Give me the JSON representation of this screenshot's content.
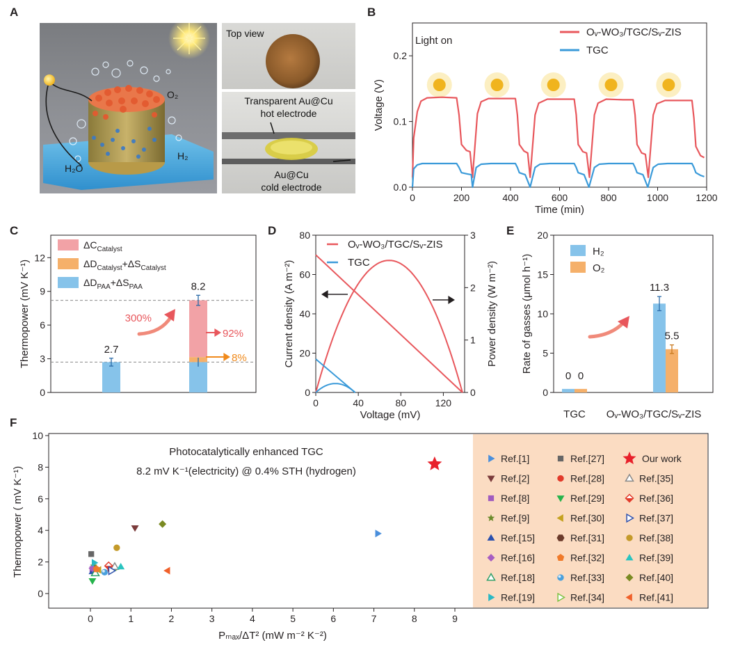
{
  "panel_labels": {
    "a": "A",
    "b": "B",
    "c": "C",
    "d": "D",
    "e": "E",
    "f": "F"
  },
  "photos": {
    "main_labels": {
      "o2": "O₂",
      "h2": "H₂",
      "h2o": "H₂O"
    },
    "top_view": "Top view",
    "side_top_line1": "Transparent Au@Cu",
    "side_top_line2": "hot electrode",
    "side_bottom_line1": "Au@Cu",
    "side_bottom_line2": "cold electrode"
  },
  "colors": {
    "red": "#e8575c",
    "blue": "#3a9ad9",
    "light_blue": "#86c3ea",
    "pink": "#f2a2a6",
    "orange": "#f5b06a",
    "orange_line": "#f08a1c",
    "legend_box": "#fbdcc2"
  },
  "chart_data": [
    {
      "id": "B",
      "type": "line",
      "title": "",
      "xlabel": "Time (min)",
      "ylabel": "Voltage (V)",
      "xlim": [
        0,
        1200
      ],
      "ylim": [
        0,
        0.25
      ],
      "xticks": [
        "0",
        "200",
        "400",
        "600",
        "800",
        "1000",
        "1200"
      ],
      "yticks": [
        "0.0",
        "0.1",
        "0.2"
      ],
      "annotation": "Light on",
      "legend_position": "top-right",
      "series": [
        {
          "name": "Oᵥ-WO₃/TGC/Sᵥ-ZIS",
          "color": "#e8575c",
          "x": [
            0,
            5,
            20,
            35,
            60,
            120,
            180,
            190,
            200,
            220,
            235,
            245,
            265,
            280,
            310,
            370,
            420,
            428,
            436,
            455,
            470,
            480,
            500,
            515,
            550,
            620,
            660,
            668,
            676,
            695,
            710,
            722,
            742,
            757,
            790,
            860,
            900,
            908,
            916,
            935,
            950,
            962,
            982,
            997,
            1030,
            1100,
            1140,
            1148,
            1156,
            1175,
            1190
          ],
          "y": [
            0.015,
            0.075,
            0.115,
            0.131,
            0.136,
            0.137,
            0.136,
            0.11,
            0.065,
            0.056,
            0.054,
            0.015,
            0.112,
            0.13,
            0.135,
            0.135,
            0.135,
            0.11,
            0.065,
            0.055,
            0.052,
            0.015,
            0.11,
            0.128,
            0.134,
            0.134,
            0.134,
            0.11,
            0.065,
            0.054,
            0.052,
            0.015,
            0.11,
            0.128,
            0.134,
            0.133,
            0.133,
            0.11,
            0.065,
            0.052,
            0.05,
            0.015,
            0.11,
            0.127,
            0.132,
            0.132,
            0.132,
            0.105,
            0.062,
            0.048,
            0.045
          ]
        },
        {
          "name": "TGC",
          "color": "#3a9ad9",
          "x": [
            0,
            5,
            20,
            40,
            80,
            180,
            190,
            200,
            225,
            240,
            245,
            260,
            280,
            320,
            420,
            428,
            436,
            460,
            480,
            500,
            520,
            560,
            660,
            668,
            676,
            700,
            720,
            742,
            762,
            800,
            900,
            908,
            916,
            940,
            960,
            982,
            1002,
            1040,
            1140,
            1148,
            1156,
            1175,
            1190
          ],
          "y": [
            0.0,
            0.028,
            0.034,
            0.036,
            0.036,
            0.036,
            0.03,
            0.022,
            0.02,
            0.019,
            0.0,
            0.03,
            0.035,
            0.036,
            0.036,
            0.03,
            0.022,
            0.019,
            0.0,
            0.03,
            0.035,
            0.036,
            0.036,
            0.03,
            0.022,
            0.019,
            0.0,
            0.03,
            0.035,
            0.036,
            0.036,
            0.03,
            0.022,
            0.019,
            0.0,
            0.03,
            0.035,
            0.036,
            0.036,
            0.03,
            0.022,
            0.018,
            0.016
          ]
        }
      ]
    },
    {
      "id": "C",
      "type": "bar",
      "title": "",
      "xlabel": "",
      "ylabel": "Thermopower (mV K⁻¹)",
      "ylim": [
        0,
        14
      ],
      "yticks": [
        "0",
        "3",
        "6",
        "9",
        "12"
      ],
      "legend": [
        "ΔC_Catalyst",
        "ΔD_Catalyst+ΔS_Catalyst",
        "ΔD_PAA+ΔS_PAA"
      ],
      "bars": [
        {
          "total": 2.7,
          "label": "2.7",
          "err": 0.35,
          "segments": [
            {
              "name": "ΔD_PAA+ΔS_PAA",
              "value": 2.7
            }
          ]
        },
        {
          "total": 8.2,
          "label": "8.2",
          "err": 0.45,
          "segments": [
            {
              "name": "ΔD_PAA+ΔS_PAA",
              "value": 2.7
            },
            {
              "name": "ΔD_Catalyst+ΔS_Catalyst",
              "value": 0.45
            },
            {
              "name": "ΔC_Catalyst",
              "value": 5.05
            }
          ]
        }
      ],
      "reference_lines": [
        8.2,
        2.7
      ],
      "annotations": {
        "increase": "300%",
        "catalyst_c": "92%",
        "catalyst_ds": "8%"
      }
    },
    {
      "id": "D",
      "type": "line",
      "title": "",
      "xlabel": "Voltage (mV)",
      "ylabel_left": "Current density (A m⁻²)",
      "ylabel_right": "Power density (W m⁻²)",
      "xlim": [
        0,
        140
      ],
      "ylim_left": [
        0,
        80
      ],
      "ylim_right": [
        0,
        3
      ],
      "xticks": [
        "0",
        "40",
        "80",
        "120"
      ],
      "yticks_left": [
        "0",
        "20",
        "40",
        "60",
        "80"
      ],
      "yticks_right": [
        "0",
        "1",
        "2",
        "3"
      ],
      "legend_position": "top-left",
      "series": [
        {
          "name": "Oᵥ-WO₃/TGC/Sᵥ-ZIS",
          "color": "#e8575c",
          "current": {
            "x": [
              0,
              138
            ],
            "y": [
              70,
              0
            ]
          },
          "power": {
            "x": [
              0,
              17,
              34,
              51,
              69,
              86,
              103,
              121,
              138
            ],
            "y": [
              0,
              1.05,
              1.88,
              2.36,
              2.52,
              2.36,
              1.88,
              1.05,
              0
            ]
          }
        },
        {
          "name": "TGC",
          "color": "#3a9ad9",
          "current": {
            "x": [
              0,
              37
            ],
            "y": [
              17,
              0
            ]
          },
          "power": {
            "x": [
              0,
              5,
              9,
              14,
              18.5,
              23,
              28,
              32,
              37
            ],
            "y": [
              0,
              0.07,
              0.13,
              0.16,
              0.17,
              0.16,
              0.13,
              0.07,
              0
            ]
          }
        }
      ]
    },
    {
      "id": "E",
      "type": "bar",
      "title": "",
      "xlabel": "",
      "ylabel": "Rate of  gasses (μmol h⁻¹)",
      "ylim": [
        0,
        20
      ],
      "yticks": [
        "0",
        "5",
        "10",
        "15",
        "20"
      ],
      "categories": [
        "TGC",
        "Oᵥ-WO₃/TGC/Sᵥ-ZIS"
      ],
      "legend_position": "top-left",
      "series": [
        {
          "name": "H₂",
          "color": "#86c3ea",
          "values": [
            0,
            11.3
          ],
          "labels": [
            "0",
            "11.3"
          ],
          "err": [
            0,
            0.9
          ]
        },
        {
          "name": "O₂",
          "color": "#f5b06a",
          "values": [
            0,
            5.5
          ],
          "labels": [
            "0",
            "5.5"
          ],
          "err": [
            0,
            0.55
          ]
        }
      ]
    },
    {
      "id": "F",
      "type": "scatter",
      "title": "Photocatalytically enhanced TGC",
      "subtitle": "8.2 mV K⁻¹(electricity) @ 0.4% STH (hydrogen)",
      "xlabel": "Pₘₐₓ/ΔT² (mW m⁻² K⁻²)",
      "ylabel": "Thermopower ( mV K⁻¹)",
      "xlim": [
        -1,
        9.5
      ],
      "ylim": [
        -1,
        10
      ],
      "xticks": [
        "0",
        "1",
        "2",
        "3",
        "4",
        "5",
        "6",
        "7",
        "8",
        "9"
      ],
      "yticks": [
        "0",
        "2",
        "4",
        "6",
        "8",
        "10"
      ],
      "legend_position": "right",
      "points": [
        {
          "name": "Ref.[1]",
          "marker": "tri-right",
          "color": "#4a8fdc",
          "x": 7.1,
          "y": 3.8
        },
        {
          "name": "Ref.[2]",
          "marker": "tri-down",
          "color": "#7b3b3b",
          "x": 1.1,
          "y": 4.15
        },
        {
          "name": "Ref.[8]",
          "marker": "square",
          "color": "#a05cbf",
          "x": 0.05,
          "y": 1.55
        },
        {
          "name": "Ref.[9]",
          "marker": "star",
          "color": "#6a8a2a",
          "x": 0.08,
          "y": 1.75
        },
        {
          "name": "Ref.[15]",
          "marker": "tri-up",
          "color": "#2a4fae",
          "x": 0.05,
          "y": 1.4
        },
        {
          "name": "Ref.[16]",
          "marker": "diamond",
          "color": "#a75dc2",
          "x": 0.05,
          "y": 1.6
        },
        {
          "name": "Ref.[18]",
          "marker": "tri-up-open",
          "color": "#2fa06a",
          "x": 0.12,
          "y": 1.3
        },
        {
          "name": "Ref.[19]",
          "marker": "tri-right",
          "color": "#2ab8c4",
          "x": 0.1,
          "y": 1.95
        },
        {
          "name": "Ref.[27]",
          "marker": "square",
          "color": "#666666",
          "x": 0.02,
          "y": 2.5
        },
        {
          "name": "Ref.[28]",
          "marker": "circle",
          "color": "#e23a2a",
          "x": 0.5,
          "y": 1.5
        },
        {
          "name": "Ref.[29]",
          "marker": "tri-down",
          "color": "#25b34b",
          "x": 0.05,
          "y": 0.8
        },
        {
          "name": "Ref.[30]",
          "marker": "tri-left",
          "color": "#c4a21f",
          "x": 0.2,
          "y": 1.5
        },
        {
          "name": "Ref.[31]",
          "marker": "hexagon",
          "color": "#6b3a2a",
          "x": 0.5,
          "y": 1.6
        },
        {
          "name": "Ref.[32]",
          "marker": "pentagon",
          "color": "#f07a2a",
          "x": 0.15,
          "y": 1.55
        },
        {
          "name": "Ref.[33]",
          "marker": "sphere",
          "color": "#4aa0dc",
          "x": 0.35,
          "y": 1.35
        },
        {
          "name": "Ref.[34]",
          "marker": "tri-right-open",
          "color": "#7cc242",
          "x": 0.55,
          "y": 1.5
        },
        {
          "name": "Ref.[35]",
          "marker": "tri-up-open",
          "color": "#888888",
          "x": 0.6,
          "y": 1.7
        },
        {
          "name": "Ref.[36]",
          "marker": "diamond-half",
          "color": "#e23a2a",
          "x": 0.45,
          "y": 1.75
        },
        {
          "name": "Ref.[37]",
          "marker": "tri-right-open",
          "color": "#2a4fae",
          "x": 0.52,
          "y": 1.45
        },
        {
          "name": "Ref.[38]",
          "marker": "circle",
          "color": "#c49a2a",
          "x": 0.65,
          "y": 2.9
        },
        {
          "name": "Ref.[39]",
          "marker": "tri-up",
          "color": "#2ac4c0",
          "x": 0.75,
          "y": 1.7
        },
        {
          "name": "Ref.[40]",
          "marker": "diamond",
          "color": "#7a8a22",
          "x": 1.78,
          "y": 4.4
        },
        {
          "name": "Ref.[41]",
          "marker": "tri-left",
          "color": "#f0602a",
          "x": 1.9,
          "y": 1.45
        },
        {
          "name": "Our work",
          "marker": "star",
          "color": "#e8202a",
          "x": 8.5,
          "y": 8.2
        }
      ]
    }
  ]
}
